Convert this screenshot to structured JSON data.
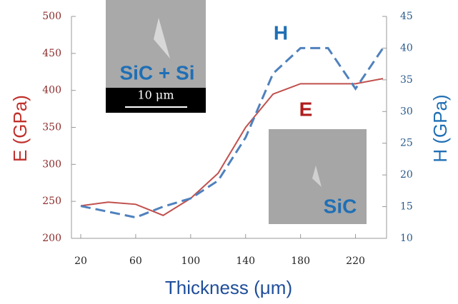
{
  "chart_data": {
    "type": "line",
    "x": [
      20,
      40,
      60,
      80,
      100,
      120,
      140,
      160,
      180,
      200,
      220,
      240
    ],
    "series": [
      {
        "name": "E",
        "color": "#c0504d",
        "dash": false,
        "values": [
          244,
          249,
          246,
          231,
          254,
          288,
          350,
          395,
          409,
          409,
          409,
          416
        ]
      },
      {
        "name": "H",
        "color": "#4f81bd",
        "dash": true,
        "axis": "y2",
        "values": [
          15.1,
          14.2,
          13.3,
          15,
          16.3,
          19.1,
          25.9,
          36,
          40,
          40,
          33.6,
          40
        ]
      }
    ],
    "xlim": [
      20,
      240
    ],
    "xticks": [
      20,
      60,
      100,
      140,
      180,
      220
    ],
    "ylim": [
      200,
      500
    ],
    "yticks": [
      200,
      250,
      300,
      350,
      400,
      450,
      500
    ],
    "y2lim": [
      10,
      45
    ],
    "y2ticks": [
      10,
      15,
      20,
      25,
      30,
      35,
      40,
      45
    ],
    "xlabel": "Thickness (μm)",
    "ylabel": "E (GPa)",
    "y2label": "H (GPa)",
    "annotations": [
      "SiC + Si",
      "10 μm",
      "SiC"
    ]
  }
}
